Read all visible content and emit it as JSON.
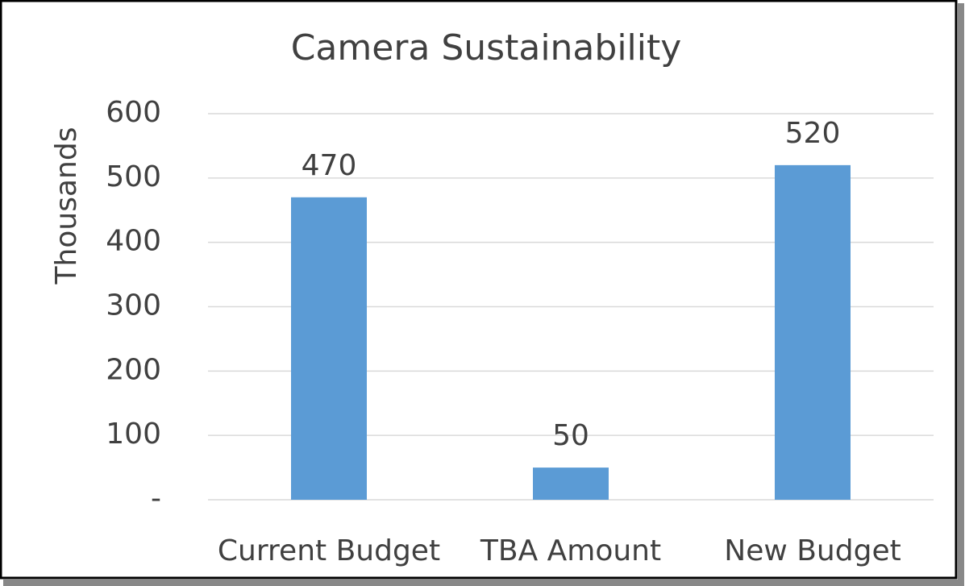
{
  "chart_data": {
    "type": "bar",
    "title": "Camera Sustainability",
    "y_axis_label": "Thousands",
    "categories": [
      "Current Budget",
      "TBA Amount",
      "New Budget"
    ],
    "values": [
      470,
      50,
      520
    ],
    "color": "#5b9bd5",
    "ylim": [
      0,
      600
    ],
    "yticks": [
      {
        "value": 0,
        "label": "-"
      },
      100,
      200,
      300,
      400,
      500,
      600
    ],
    "grid": true
  }
}
